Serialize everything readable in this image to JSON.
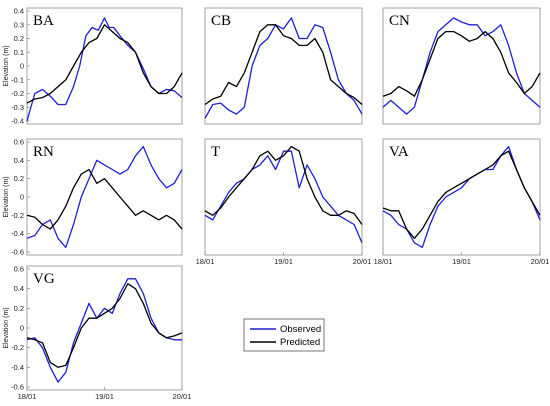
{
  "colors": {
    "observed": "#1f1fd6",
    "predicted": "#000000"
  },
  "legend": {
    "observed_label": "Observed",
    "predicted_label": "Predicted"
  },
  "chart_data": [
    {
      "type": "line",
      "title": "BA",
      "ylabel": "Elevation (m)",
      "ylim": [
        -0.4,
        0.4
      ],
      "yticks": [
        "0.4",
        "0.3",
        "0.2",
        "0.1",
        "0",
        "-0.1",
        "-0.2",
        "-0.3",
        "-0.4"
      ],
      "xticks": [],
      "series": [
        {
          "name": "Observed",
          "x": [
            0,
            0.05,
            0.1,
            0.15,
            0.2,
            0.25,
            0.3,
            0.34,
            0.38,
            0.42,
            0.46,
            0.5,
            0.53,
            0.56,
            0.6,
            0.65,
            0.7,
            0.75,
            0.8,
            0.85,
            0.9,
            0.95,
            1
          ],
          "y": [
            -0.4,
            -0.2,
            -0.17,
            -0.22,
            -0.28,
            -0.28,
            -0.15,
            0.0,
            0.22,
            0.28,
            0.26,
            0.35,
            0.28,
            0.28,
            0.22,
            0.15,
            0.1,
            -0.02,
            -0.15,
            -0.2,
            -0.17,
            -0.18,
            -0.23
          ]
        },
        {
          "name": "Predicted",
          "x": [
            0,
            0.05,
            0.1,
            0.15,
            0.2,
            0.25,
            0.3,
            0.35,
            0.4,
            0.45,
            0.5,
            0.55,
            0.6,
            0.65,
            0.7,
            0.75,
            0.8,
            0.85,
            0.9,
            0.95,
            1
          ],
          "y": [
            -0.27,
            -0.24,
            -0.23,
            -0.2,
            -0.15,
            -0.1,
            0.0,
            0.1,
            0.17,
            0.2,
            0.3,
            0.25,
            0.2,
            0.17,
            0.1,
            -0.05,
            -0.15,
            -0.2,
            -0.2,
            -0.15,
            -0.05
          ]
        }
      ]
    },
    {
      "type": "line",
      "title": "CB",
      "ylabel": "",
      "ylim": [
        -0.4,
        0.4
      ],
      "yticks": [],
      "xticks": [],
      "series": [
        {
          "name": "Observed",
          "x": [
            0,
            0.05,
            0.1,
            0.15,
            0.2,
            0.25,
            0.3,
            0.35,
            0.4,
            0.45,
            0.5,
            0.55,
            0.6,
            0.65,
            0.7,
            0.75,
            0.8,
            0.85,
            0.9,
            0.95,
            1
          ],
          "y": [
            -0.38,
            -0.28,
            -0.27,
            -0.32,
            -0.35,
            -0.3,
            0.0,
            0.15,
            0.2,
            0.3,
            0.27,
            0.35,
            0.2,
            0.2,
            0.3,
            0.28,
            0.1,
            -0.1,
            -0.2,
            -0.25,
            -0.35
          ]
        },
        {
          "name": "Predicted",
          "x": [
            0,
            0.05,
            0.1,
            0.15,
            0.2,
            0.25,
            0.3,
            0.35,
            0.4,
            0.45,
            0.5,
            0.55,
            0.6,
            0.65,
            0.7,
            0.75,
            0.8,
            0.85,
            0.9,
            0.95,
            1
          ],
          "y": [
            -0.28,
            -0.24,
            -0.22,
            -0.12,
            -0.15,
            -0.05,
            0.1,
            0.25,
            0.3,
            0.3,
            0.22,
            0.2,
            0.15,
            0.15,
            0.2,
            0.1,
            -0.1,
            -0.15,
            -0.2,
            -0.23,
            -0.28
          ]
        }
      ]
    },
    {
      "type": "line",
      "title": "CN",
      "ylabel": "",
      "ylim": [
        -0.4,
        0.4
      ],
      "yticks": [],
      "xticks": [],
      "series": [
        {
          "name": "Observed",
          "x": [
            0,
            0.05,
            0.1,
            0.15,
            0.2,
            0.25,
            0.3,
            0.35,
            0.4,
            0.45,
            0.5,
            0.55,
            0.6,
            0.65,
            0.7,
            0.75,
            0.8,
            0.85,
            0.9,
            0.95,
            1
          ],
          "y": [
            -0.3,
            -0.25,
            -0.3,
            -0.35,
            -0.3,
            -0.1,
            0.1,
            0.25,
            0.3,
            0.35,
            0.32,
            0.3,
            0.3,
            0.22,
            0.25,
            0.3,
            0.15,
            -0.05,
            -0.2,
            -0.25,
            -0.3
          ]
        },
        {
          "name": "Predicted",
          "x": [
            0,
            0.05,
            0.1,
            0.15,
            0.2,
            0.25,
            0.3,
            0.35,
            0.4,
            0.45,
            0.5,
            0.55,
            0.6,
            0.65,
            0.7,
            0.75,
            0.8,
            0.85,
            0.9,
            0.95,
            1
          ],
          "y": [
            -0.22,
            -0.2,
            -0.15,
            -0.18,
            -0.22,
            -0.1,
            0.05,
            0.2,
            0.25,
            0.25,
            0.22,
            0.18,
            0.2,
            0.25,
            0.2,
            0.1,
            -0.05,
            -0.12,
            -0.2,
            -0.15,
            -0.05
          ]
        }
      ]
    },
    {
      "type": "line",
      "title": "RN",
      "ylabel": "Elevation (m)",
      "ylim": [
        -0.6,
        0.6
      ],
      "yticks": [
        "0.6",
        "0.4",
        "0.2",
        "0",
        "-0.2",
        "-0.4",
        "-0.6"
      ],
      "xticks": [],
      "series": [
        {
          "name": "Observed",
          "x": [
            0,
            0.05,
            0.1,
            0.15,
            0.2,
            0.25,
            0.3,
            0.35,
            0.4,
            0.45,
            0.5,
            0.55,
            0.6,
            0.65,
            0.7,
            0.75,
            0.8,
            0.85,
            0.9,
            0.95,
            1
          ],
          "y": [
            -0.45,
            -0.42,
            -0.3,
            -0.25,
            -0.45,
            -0.55,
            -0.3,
            0.0,
            0.2,
            0.4,
            0.35,
            0.3,
            0.25,
            0.3,
            0.45,
            0.55,
            0.35,
            0.2,
            0.1,
            0.15,
            0.3
          ]
        },
        {
          "name": "Predicted",
          "x": [
            0,
            0.05,
            0.1,
            0.15,
            0.2,
            0.25,
            0.3,
            0.35,
            0.4,
            0.45,
            0.5,
            0.55,
            0.6,
            0.65,
            0.7,
            0.75,
            0.8,
            0.85,
            0.9,
            0.95,
            1
          ],
          "y": [
            -0.2,
            -0.22,
            -0.3,
            -0.35,
            -0.25,
            -0.1,
            0.1,
            0.25,
            0.3,
            0.15,
            0.2,
            0.1,
            0.0,
            -0.1,
            -0.2,
            -0.15,
            -0.2,
            -0.25,
            -0.2,
            -0.25,
            -0.35
          ]
        }
      ]
    },
    {
      "type": "line",
      "title": "T",
      "ylabel": "",
      "ylim": [
        -0.6,
        0.6
      ],
      "yticks": [],
      "xticks": [
        "18/01",
        "19/01",
        "20/01"
      ],
      "series": [
        {
          "name": "Observed",
          "x": [
            0,
            0.05,
            0.1,
            0.15,
            0.2,
            0.25,
            0.3,
            0.35,
            0.4,
            0.45,
            0.5,
            0.55,
            0.6,
            0.65,
            0.7,
            0.75,
            0.8,
            0.85,
            0.9,
            0.95,
            1
          ],
          "y": [
            -0.2,
            -0.25,
            -0.1,
            0.05,
            0.15,
            0.2,
            0.3,
            0.35,
            0.45,
            0.3,
            0.5,
            0.5,
            0.1,
            0.35,
            0.2,
            0.0,
            -0.1,
            -0.2,
            -0.25,
            -0.3,
            -0.5
          ]
        },
        {
          "name": "Predicted",
          "x": [
            0,
            0.05,
            0.1,
            0.15,
            0.2,
            0.25,
            0.3,
            0.35,
            0.4,
            0.45,
            0.5,
            0.55,
            0.6,
            0.65,
            0.7,
            0.75,
            0.8,
            0.85,
            0.9,
            0.95,
            1
          ],
          "y": [
            -0.15,
            -0.2,
            -0.12,
            0.0,
            0.1,
            0.2,
            0.3,
            0.45,
            0.5,
            0.4,
            0.45,
            0.55,
            0.5,
            0.2,
            0.0,
            -0.15,
            -0.2,
            -0.2,
            -0.15,
            -0.18,
            -0.3
          ]
        }
      ]
    },
    {
      "type": "line",
      "title": "VA",
      "ylabel": "",
      "ylim": [
        -0.6,
        0.6
      ],
      "yticks": [],
      "xticks": [
        "18/01",
        "19/01",
        "20/01"
      ],
      "series": [
        {
          "name": "Observed",
          "x": [
            0,
            0.05,
            0.1,
            0.15,
            0.2,
            0.25,
            0.3,
            0.35,
            0.4,
            0.45,
            0.5,
            0.55,
            0.6,
            0.65,
            0.7,
            0.75,
            0.8,
            0.85,
            0.9,
            0.95,
            1
          ],
          "y": [
            -0.15,
            -0.2,
            -0.3,
            -0.35,
            -0.5,
            -0.55,
            -0.3,
            -0.1,
            0.0,
            0.05,
            0.1,
            0.2,
            0.25,
            0.3,
            0.3,
            0.45,
            0.55,
            0.3,
            0.1,
            -0.05,
            -0.25
          ]
        },
        {
          "name": "Predicted",
          "x": [
            0,
            0.05,
            0.1,
            0.15,
            0.2,
            0.25,
            0.3,
            0.35,
            0.4,
            0.45,
            0.5,
            0.55,
            0.6,
            0.65,
            0.7,
            0.75,
            0.8,
            0.85,
            0.9,
            0.95,
            1
          ],
          "y": [
            -0.12,
            -0.15,
            -0.15,
            -0.35,
            -0.45,
            -0.35,
            -0.2,
            -0.05,
            0.05,
            0.1,
            0.15,
            0.2,
            0.25,
            0.3,
            0.35,
            0.45,
            0.5,
            0.3,
            0.1,
            -0.05,
            -0.2
          ]
        }
      ]
    },
    {
      "type": "line",
      "title": "VG",
      "ylabel": "Elevation (m)",
      "ylim": [
        -0.6,
        0.6
      ],
      "yticks": [
        "0.6",
        "0.4",
        "0.2",
        "0",
        "-0.2",
        "-0.4",
        "-0.6"
      ],
      "xticks": [
        "18/01",
        "19/01",
        "20/01"
      ],
      "series": [
        {
          "name": "Observed",
          "x": [
            0,
            0.05,
            0.1,
            0.15,
            0.2,
            0.25,
            0.3,
            0.35,
            0.4,
            0.45,
            0.5,
            0.55,
            0.6,
            0.65,
            0.7,
            0.75,
            0.8,
            0.85,
            0.9,
            0.95,
            1
          ],
          "y": [
            -0.12,
            -0.1,
            -0.2,
            -0.4,
            -0.55,
            -0.45,
            -0.15,
            0.05,
            0.25,
            0.1,
            0.2,
            0.15,
            0.35,
            0.5,
            0.5,
            0.35,
            0.1,
            -0.05,
            -0.1,
            -0.12,
            -0.12
          ]
        },
        {
          "name": "Predicted",
          "x": [
            0,
            0.05,
            0.1,
            0.15,
            0.2,
            0.25,
            0.3,
            0.35,
            0.4,
            0.45,
            0.5,
            0.55,
            0.6,
            0.65,
            0.7,
            0.75,
            0.8,
            0.85,
            0.9,
            0.95,
            1
          ],
          "y": [
            -0.1,
            -0.12,
            -0.15,
            -0.35,
            -0.4,
            -0.38,
            -0.2,
            0.0,
            0.1,
            0.1,
            0.15,
            0.2,
            0.3,
            0.45,
            0.4,
            0.25,
            0.05,
            -0.05,
            -0.1,
            -0.08,
            -0.05
          ]
        }
      ]
    }
  ]
}
